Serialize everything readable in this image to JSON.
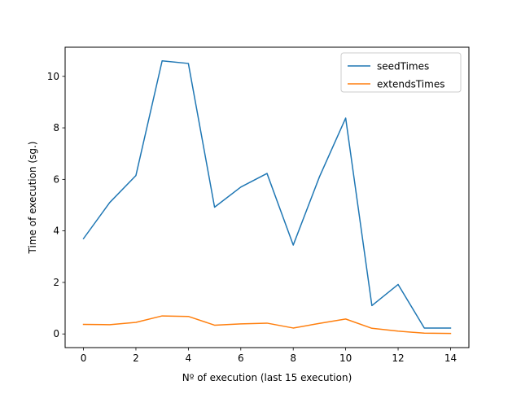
{
  "chart_data": {
    "type": "line",
    "title": "",
    "xlabel": "Nº of execution (last 15 execution)",
    "ylabel": "Time of execution (sg.)",
    "x": [
      0,
      1,
      2,
      3,
      4,
      5,
      6,
      7,
      8,
      9,
      10,
      11,
      12,
      13,
      14
    ],
    "xlim": [
      -0.7,
      14.7
    ],
    "ylim": [
      -0.53,
      11.13
    ],
    "xticks": [
      0,
      2,
      4,
      6,
      8,
      10,
      12,
      14
    ],
    "yticks": [
      0,
      2,
      4,
      6,
      8,
      10
    ],
    "grid": false,
    "legend_position": "top-right",
    "series": [
      {
        "name": "seedTimes",
        "color": "#1f77b4",
        "values": [
          3.7,
          5.1,
          6.15,
          10.6,
          10.5,
          4.92,
          5.7,
          6.23,
          3.45,
          6.1,
          8.38,
          1.1,
          1.92,
          0.23,
          0.23
        ]
      },
      {
        "name": "extendsTimes",
        "color": "#ff7f0e",
        "values": [
          0.37,
          0.36,
          0.45,
          0.7,
          0.68,
          0.34,
          0.39,
          0.42,
          0.23,
          0.41,
          0.58,
          0.22,
          0.11,
          0.03,
          0.02
        ]
      }
    ]
  }
}
